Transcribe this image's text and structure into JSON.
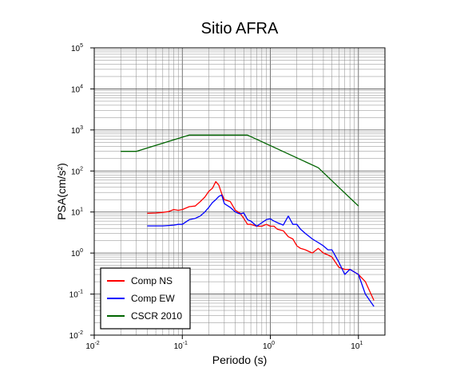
{
  "chart_data": {
    "type": "line",
    "title": "Sitio AFRA",
    "xlabel": "Periodo (s)",
    "ylabel": "PSA(cm/s²)",
    "x_scale": "log",
    "y_scale": "log",
    "xlim": [
      0.01,
      20
    ],
    "ylim": [
      0.01,
      100000
    ],
    "grid": true,
    "legend_position": "bottom-left",
    "x_ticks": [
      {
        "base": "10",
        "exp": "-2"
      },
      {
        "base": "10",
        "exp": "-1"
      },
      {
        "base": "10",
        "exp": "0"
      },
      {
        "base": "10",
        "exp": "1"
      }
    ],
    "y_ticks": [
      {
        "base": "10",
        "exp": "-2"
      },
      {
        "base": "10",
        "exp": "-1"
      },
      {
        "base": "10",
        "exp": "0"
      },
      {
        "base": "10",
        "exp": "1"
      },
      {
        "base": "10",
        "exp": "2"
      },
      {
        "base": "10",
        "exp": "3"
      },
      {
        "base": "10",
        "exp": "4"
      },
      {
        "base": "10",
        "exp": "5"
      }
    ],
    "series": [
      {
        "name": "Comp NS",
        "color": "#ff0000",
        "x": [
          0.04,
          0.05,
          0.06,
          0.07,
          0.08,
          0.09,
          0.1,
          0.12,
          0.14,
          0.16,
          0.18,
          0.2,
          0.22,
          0.24,
          0.26,
          0.28,
          0.3,
          0.35,
          0.4,
          0.45,
          0.5,
          0.55,
          0.6,
          0.7,
          0.8,
          0.9,
          1.0,
          1.1,
          1.2,
          1.4,
          1.6,
          1.8,
          2.0,
          2.2,
          2.5,
          3.0,
          3.5,
          4.0,
          4.5,
          5.0,
          6.0,
          7.0,
          8.0,
          10.0,
          12.0,
          15.0
        ],
        "values": [
          9.3,
          9.5,
          9.8,
          10.3,
          11.5,
          11.0,
          11.5,
          13.5,
          14.0,
          18.0,
          23.0,
          32.0,
          38.0,
          55.0,
          45.0,
          28.0,
          20.0,
          18.0,
          11.0,
          9.5,
          7.0,
          5.0,
          5.0,
          4.5,
          4.5,
          5.0,
          4.5,
          4.5,
          3.8,
          3.5,
          2.5,
          2.2,
          1.5,
          1.3,
          1.2,
          1.0,
          1.3,
          1.0,
          0.9,
          0.8,
          0.45,
          0.4,
          0.4,
          0.3,
          0.2,
          0.07
        ]
      },
      {
        "name": "Comp EW",
        "color": "#0000ff",
        "x": [
          0.04,
          0.05,
          0.06,
          0.07,
          0.08,
          0.09,
          0.1,
          0.12,
          0.14,
          0.16,
          0.18,
          0.2,
          0.22,
          0.24,
          0.26,
          0.28,
          0.3,
          0.35,
          0.4,
          0.45,
          0.5,
          0.55,
          0.6,
          0.7,
          0.8,
          0.9,
          1.0,
          1.1,
          1.2,
          1.4,
          1.6,
          1.8,
          2.0,
          2.2,
          2.5,
          3.0,
          3.5,
          4.0,
          4.5,
          5.0,
          6.0,
          7.0,
          8.0,
          10.0,
          12.0,
          15.0
        ],
        "values": [
          4.6,
          4.6,
          4.6,
          4.7,
          4.8,
          5.0,
          5.0,
          6.5,
          7.0,
          8.0,
          10.0,
          13.0,
          17.0,
          20.0,
          24.0,
          26.0,
          16.0,
          13.0,
          10.0,
          9.0,
          9.5,
          6.5,
          6.0,
          4.5,
          5.5,
          6.5,
          6.8,
          6.0,
          5.5,
          4.8,
          8.0,
          5.0,
          5.0,
          3.8,
          3.0,
          2.2,
          1.8,
          1.5,
          1.2,
          1.2,
          0.6,
          0.3,
          0.4,
          0.3,
          0.1,
          0.05
        ]
      },
      {
        "name": "CSCR 2010",
        "color": "#006400",
        "x": [
          0.02,
          0.03,
          0.12,
          0.55,
          3.5,
          10.0
        ],
        "values": [
          300,
          300,
          750,
          750,
          120,
          14
        ]
      }
    ]
  }
}
